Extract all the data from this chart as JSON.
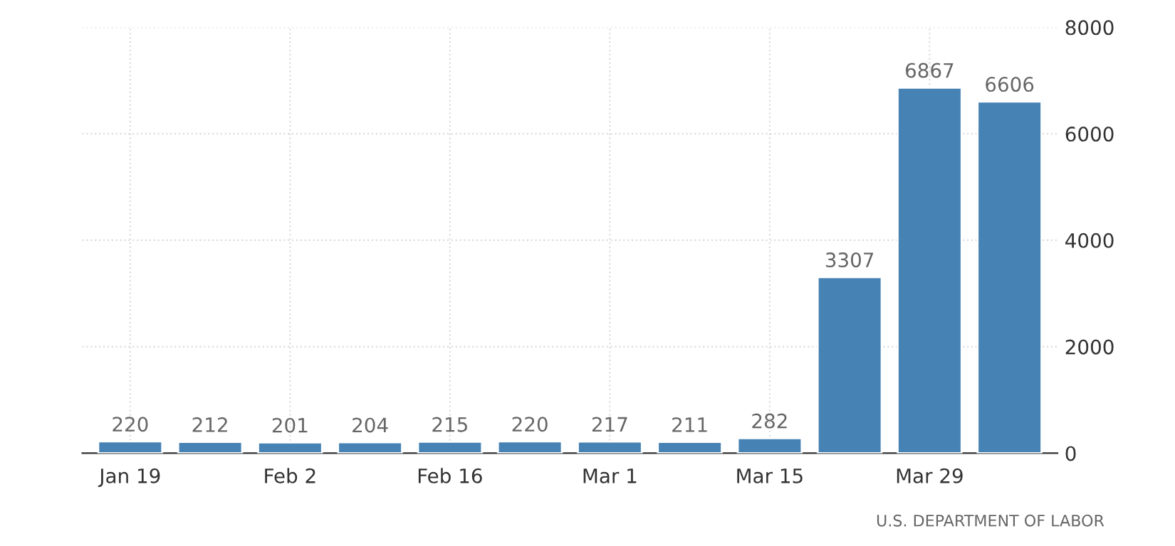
{
  "chart_data": {
    "type": "bar",
    "categories": [
      "Jan 19",
      null,
      "Feb 2",
      null,
      "Feb 16",
      null,
      "Mar 1",
      null,
      "Mar 15",
      null,
      "Mar 29",
      null
    ],
    "values": [
      220,
      212,
      201,
      204,
      215,
      220,
      217,
      211,
      282,
      3307,
      6867,
      6606
    ],
    "color": "#4682b4",
    "ylim": [
      0,
      8000
    ],
    "yticks": [
      0,
      2000,
      4000,
      6000,
      8000
    ],
    "grid": true,
    "data_labels": true,
    "annotations": [
      "U.S. DEPARTMENT OF LABOR"
    ]
  }
}
